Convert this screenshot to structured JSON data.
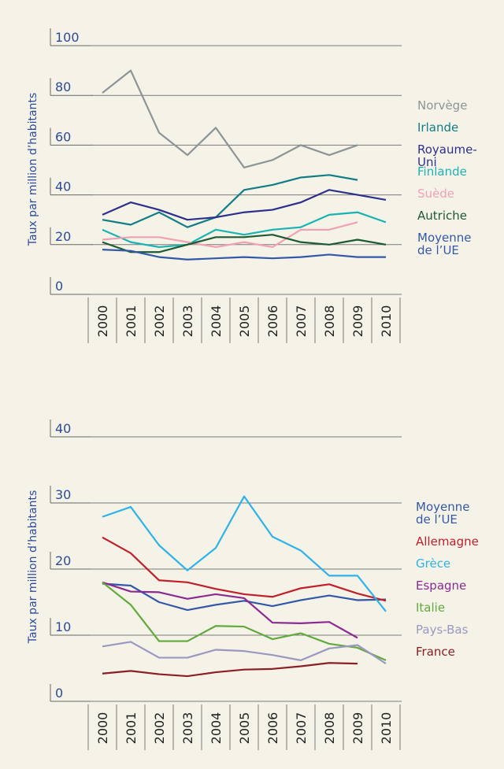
{
  "chart_data": [
    {
      "type": "line",
      "y_label": "Taux par million d’habitants",
      "categories": [
        "2000",
        "2001",
        "2002",
        "2003",
        "2004",
        "2005",
        "2006",
        "2007",
        "2008",
        "2009",
        "2010"
      ],
      "ylim": [
        0,
        100
      ],
      "yticks": [
        0,
        20,
        40,
        60,
        80,
        100
      ],
      "grid": true,
      "series": [
        {
          "name": "Norvège",
          "color": "#8d9496",
          "values": [
            81,
            90,
            65,
            56,
            67,
            51,
            54,
            60,
            56,
            60,
            null
          ]
        },
        {
          "name": "Irlande",
          "color": "#137d86",
          "values": [
            30,
            28,
            33,
            27,
            31,
            42,
            44,
            47,
            48,
            46,
            null
          ]
        },
        {
          "name": "Royaume-Uni",
          "color": "#2e2f8c",
          "values": [
            32,
            37,
            34,
            30,
            31,
            33,
            34,
            37,
            42,
            40,
            38
          ]
        },
        {
          "name": "Finlande",
          "color": "#1ab3b3",
          "values": [
            26,
            21,
            19,
            20,
            26,
            24,
            26,
            27,
            32,
            33,
            29
          ]
        },
        {
          "name": "Suède",
          "color": "#f0a1b3",
          "values": [
            22,
            23,
            23,
            21,
            19,
            21,
            19,
            26,
            26,
            29,
            null
          ]
        },
        {
          "name": "Autriche",
          "color": "#1d5a34",
          "values": [
            21,
            17,
            17,
            20,
            23,
            23,
            24,
            21,
            20,
            22,
            20
          ]
        },
        {
          "name": "Moyenne de l’UE",
          "color": "#3458a8",
          "values": [
            18,
            17.5,
            15,
            14,
            14.5,
            15,
            14.5,
            15,
            16,
            15,
            15
          ]
        }
      ]
    },
    {
      "type": "line",
      "y_label": "Taux par million d’habitants",
      "categories": [
        "2000",
        "2001",
        "2002",
        "2003",
        "2004",
        "2005",
        "2006",
        "2007",
        "2008",
        "2009",
        "2010"
      ],
      "ylim": [
        0,
        40
      ],
      "yticks": [
        0,
        10,
        20,
        30,
        40
      ],
      "grid": true,
      "series": [
        {
          "name": "Moyenne de l’UE",
          "color": "#3458a8",
          "values": [
            17.8,
            17.5,
            15,
            13.8,
            14.6,
            15.2,
            14.4,
            15.3,
            16,
            15.3,
            15.4
          ]
        },
        {
          "name": "Allemagne",
          "color": "#c0202a",
          "values": [
            24.8,
            22.4,
            18.3,
            18,
            17,
            16.2,
            15.8,
            17.1,
            17.7,
            16.3,
            15.2
          ]
        },
        {
          "name": "Grèce",
          "color": "#2fb2e8",
          "values": [
            27.9,
            29.4,
            23.6,
            19.8,
            23.2,
            31,
            24.9,
            22.8,
            19,
            19,
            13.6
          ]
        },
        {
          "name": "Espagne",
          "color": "#8a2a92",
          "values": [
            18,
            16.6,
            16.5,
            15.5,
            16.2,
            15.6,
            11.9,
            11.8,
            12,
            9.6,
            null
          ]
        },
        {
          "name": "Italie",
          "color": "#62a93e",
          "values": [
            18,
            14.6,
            9.1,
            9.1,
            11.4,
            11.3,
            9.4,
            10.3,
            8.7,
            8.1,
            6.2
          ]
        },
        {
          "name": "Pays-Bas",
          "color": "#9a98c2",
          "values": [
            8.3,
            9,
            6.6,
            6.6,
            7.8,
            7.6,
            7,
            6.2,
            8,
            8.5,
            5.7
          ]
        },
        {
          "name": "France",
          "color": "#8a1f24",
          "values": [
            4.2,
            4.6,
            4.1,
            3.8,
            4.4,
            4.8,
            4.9,
            5.3,
            5.8,
            5.7,
            null
          ]
        }
      ]
    }
  ]
}
